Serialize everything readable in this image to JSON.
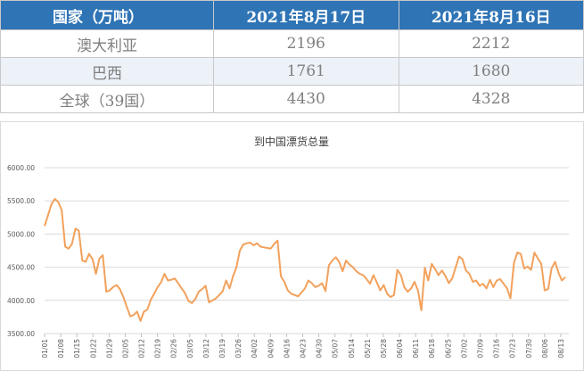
{
  "table": {
    "headers": [
      "国家（万吨）",
      "2021年8月17日",
      "2021年8月16日"
    ],
    "rows": [
      [
        "澳大利亚",
        "2196",
        "2212"
      ],
      [
        "巴西",
        "1761",
        "1680"
      ],
      [
        "全球（39国）",
        "4430",
        "4328"
      ]
    ]
  },
  "chart_data": {
    "type": "line",
    "title": "到中国漂货总量",
    "ylim": [
      3500,
      6000
    ],
    "yticks": [
      "3500.00",
      "4000.00",
      "4500.00",
      "5000.00",
      "5500.00",
      "6000.00"
    ],
    "xticks": [
      "01/01",
      "01/08",
      "01/15",
      "01/22",
      "01/29",
      "02/05",
      "02/12",
      "02/19",
      "02/26",
      "03/05",
      "03/12",
      "03/19",
      "03/26",
      "04/02",
      "04/09",
      "04/16",
      "04/23",
      "04/30",
      "05/07",
      "05/14",
      "05/21",
      "05/28",
      "06/04",
      "06/11",
      "06/18",
      "06/25",
      "07/02",
      "07/09",
      "07/16",
      "07/23",
      "07/30",
      "08/06",
      "08/13"
    ],
    "grid": true,
    "line_color": "#f2a15c",
    "series": [
      {
        "values": [
          5120,
          5280,
          5450,
          5530,
          5480,
          5360,
          4810,
          4780,
          4850,
          5080,
          5050,
          4600,
          4580,
          4700,
          4620,
          4400,
          4630,
          4680,
          4130,
          4150,
          4200,
          4230,
          4170,
          4050,
          3900,
          3760,
          3780,
          3830,
          3690,
          3830,
          3860,
          4010,
          4100,
          4200,
          4270,
          4400,
          4300,
          4310,
          4330,
          4260,
          4180,
          4110,
          3990,
          3960,
          4020,
          4130,
          4170,
          4220,
          3970,
          4000,
          4030,
          4080,
          4140,
          4300,
          4180,
          4360,
          4500,
          4750,
          4840,
          4860,
          4870,
          4830,
          4860,
          4810,
          4800,
          4790,
          4780,
          4850,
          4900,
          4360,
          4280,
          4150,
          4100,
          4080,
          4060,
          4120,
          4180,
          4300,
          4260,
          4200,
          4220,
          4260,
          4140,
          4530,
          4600,
          4650,
          4580,
          4440,
          4600,
          4540,
          4500,
          4440,
          4400,
          4380,
          4320,
          4250,
          4380,
          4270,
          4150,
          4230,
          4100,
          4050,
          4080,
          4460,
          4380,
          4200,
          4130,
          4180,
          4280,
          4150,
          3850,
          4490,
          4300,
          4550,
          4470,
          4380,
          4450,
          4370,
          4260,
          4330,
          4500,
          4660,
          4620,
          4450,
          4400,
          4280,
          4300,
          4220,
          4250,
          4180,
          4310,
          4200,
          4300,
          4320,
          4250,
          4180,
          4030,
          4560,
          4720,
          4700,
          4480,
          4510,
          4460,
          4720,
          4630,
          4550,
          4150,
          4170,
          4480,
          4580,
          4420,
          4300,
          4350
        ]
      }
    ]
  }
}
